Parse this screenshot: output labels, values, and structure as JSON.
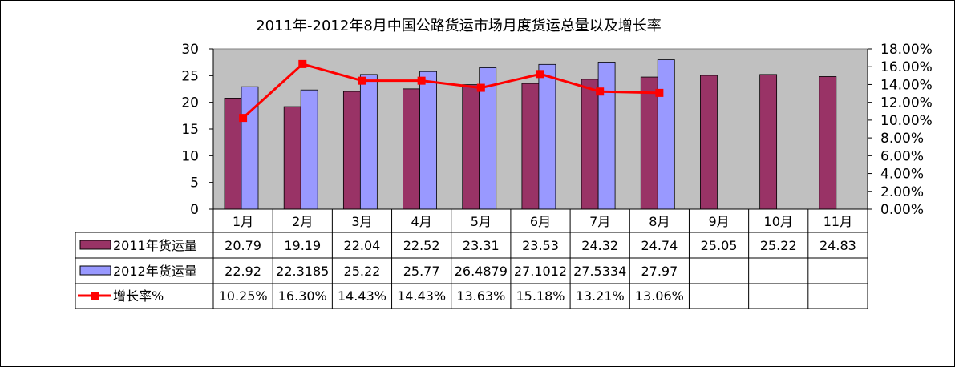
{
  "chart_data": {
    "type": "bar",
    "title": "2011年-2012年8月中国公路货运市场月度货运总量以及增长率",
    "categories": [
      "1月",
      "2月",
      "3月",
      "4月",
      "5月",
      "6月",
      "7月",
      "8月",
      "9月",
      "10月",
      "11月"
    ],
    "series": [
      {
        "name": "2011年货运量",
        "type": "bar",
        "axis": "left",
        "color": "#993366",
        "values": [
          20.79,
          19.19,
          22.04,
          22.52,
          23.31,
          23.53,
          24.32,
          24.74,
          25.05,
          25.22,
          24.83
        ],
        "labels": [
          "20.79",
          "19.19",
          "22.04",
          "22.52",
          "23.31",
          "23.53",
          "24.32",
          "24.74",
          "25.05",
          "25.22",
          "24.83"
        ]
      },
      {
        "name": "2012年货运量",
        "type": "bar",
        "axis": "left",
        "color": "#9999ff",
        "values": [
          22.92,
          22.3185,
          25.22,
          25.77,
          26.4879,
          27.1012,
          27.5334,
          27.97,
          null,
          null,
          null
        ],
        "labels": [
          "22.92",
          "22.3185",
          "25.22",
          "25.77",
          "26.4879",
          "27.1012",
          "27.5334",
          "27.97",
          "",
          "",
          ""
        ]
      },
      {
        "name": "增长率%",
        "type": "line",
        "axis": "right",
        "color": "#ff0000",
        "values": [
          10.25,
          16.3,
          14.43,
          14.43,
          13.63,
          15.18,
          13.21,
          13.06,
          null,
          null,
          null
        ],
        "labels": [
          "10.25%",
          "16.30%",
          "14.43%",
          "14.43%",
          "13.63%",
          "15.18%",
          "13.21%",
          "13.06%",
          "",
          "",
          ""
        ]
      }
    ],
    "y_left": {
      "ylim": [
        0,
        30
      ],
      "ticks": [
        "0",
        "5",
        "10",
        "15",
        "20",
        "25",
        "30"
      ]
    },
    "y_right": {
      "ylim": [
        0,
        18
      ],
      "ticks": [
        "0.00%",
        "2.00%",
        "4.00%",
        "6.00%",
        "8.00%",
        "10.00%",
        "12.00%",
        "14.00%",
        "16.00%",
        "18.00%"
      ]
    },
    "plot_background": "#c0c0c0",
    "grid": false,
    "legend": "data-table"
  }
}
